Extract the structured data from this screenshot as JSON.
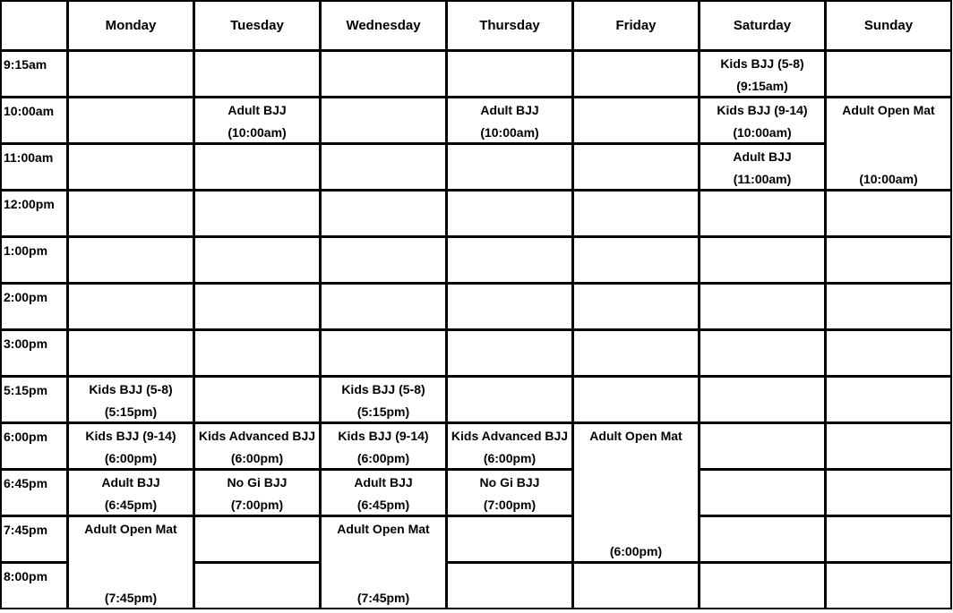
{
  "days": [
    "Monday",
    "Tuesday",
    "Wednesday",
    "Thursday",
    "Friday",
    "Saturday",
    "Sunday"
  ],
  "times": [
    "9:15am",
    "10:00am",
    "11:00am",
    "12:00pm",
    "1:00pm",
    "2:00pm",
    "3:00pm",
    "5:15pm",
    "6:00pm",
    "6:45pm",
    "7:45pm",
    "8:00pm"
  ],
  "events": [
    {
      "day": 5,
      "row": 0,
      "span": 1,
      "title": "Kids BJJ (5-8)",
      "time": "(9:15am)"
    },
    {
      "day": 1,
      "row": 1,
      "span": 1,
      "title": "Adult BJJ",
      "time": "(10:00am)"
    },
    {
      "day": 3,
      "row": 1,
      "span": 1,
      "title": "Adult BJJ",
      "time": "(10:00am)"
    },
    {
      "day": 5,
      "row": 1,
      "span": 1,
      "title": "Kids BJJ (9-14)",
      "time": "(10:00am)"
    },
    {
      "day": 6,
      "row": 1,
      "span": 2,
      "title": "Adult Open Mat",
      "time": "(10:00am)"
    },
    {
      "day": 5,
      "row": 2,
      "span": 1,
      "title": "Adult BJJ",
      "time": "(11:00am)"
    },
    {
      "day": 0,
      "row": 7,
      "span": 1,
      "title": "Kids BJJ (5-8)",
      "time": "(5:15pm)"
    },
    {
      "day": 2,
      "row": 7,
      "span": 1,
      "title": "Kids BJJ (5-8)",
      "time": "(5:15pm)"
    },
    {
      "day": 0,
      "row": 8,
      "span": 1,
      "title": "Kids BJJ (9-14)",
      "time": "(6:00pm)"
    },
    {
      "day": 1,
      "row": 8,
      "span": 1,
      "title": "Kids Advanced BJJ",
      "time": "(6:00pm)"
    },
    {
      "day": 2,
      "row": 8,
      "span": 1,
      "title": "Kids BJJ (9-14)",
      "time": "(6:00pm)"
    },
    {
      "day": 3,
      "row": 8,
      "span": 1,
      "title": "Kids Advanced BJJ",
      "time": "(6:00pm)"
    },
    {
      "day": 4,
      "row": 8,
      "span": 3,
      "title": "Adult Open Mat",
      "time": "(6:00pm)"
    },
    {
      "day": 0,
      "row": 9,
      "span": 1,
      "title": "Adult BJJ",
      "time": "(6:45pm)"
    },
    {
      "day": 1,
      "row": 9,
      "span": 1,
      "title": "No Gi BJJ",
      "time": "(7:00pm)"
    },
    {
      "day": 2,
      "row": 9,
      "span": 1,
      "title": "Adult BJJ",
      "time": "(6:45pm)"
    },
    {
      "day": 3,
      "row": 9,
      "span": 1,
      "title": "No Gi BJJ",
      "time": "(7:00pm)"
    },
    {
      "day": 0,
      "row": 10,
      "span": 2,
      "title": "Adult Open Mat",
      "time": "(7:45pm)"
    },
    {
      "day": 2,
      "row": 10,
      "span": 2,
      "title": "Adult Open Mat",
      "time": "(7:45pm)"
    }
  ]
}
